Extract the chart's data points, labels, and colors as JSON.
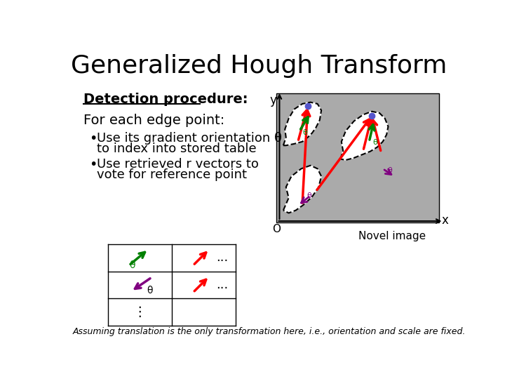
{
  "title": "Generalized Hough Transform",
  "title_fontsize": 26,
  "bg_color": "#ffffff",
  "detection_header": "Detection procedure:",
  "text_for_each": "For each edge point:",
  "bullet1_line1": "Use its gradient orientation θ",
  "bullet1_line2": "to index into stored table",
  "bullet2_line1": "Use retrieved r vectors to",
  "bullet2_line2": "vote for reference point",
  "novel_image_label": "Novel image",
  "footnote": "Assuming translation is the only transformation here, i.e., orientation and scale are fixed.",
  "gray_box_color": "#aaaaaa",
  "table_border_color": "#000000"
}
